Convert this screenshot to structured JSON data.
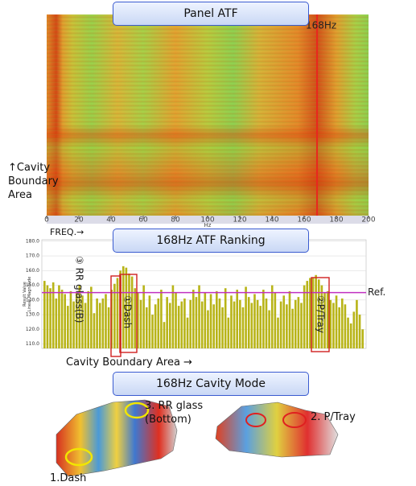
{
  "charts": [
    {
      "type": "heatmap",
      "title": "Panel  ATF",
      "xlabel": "FREQ.→",
      "ylabel": [
        "↑Cavity",
        "Boundary",
        "Area"
      ],
      "xunit": "Hz",
      "xlim": [
        0,
        200
      ],
      "xticks": [
        0,
        20,
        40,
        60,
        80,
        100,
        120,
        140,
        160,
        180,
        200
      ],
      "marker": {
        "value": 168,
        "label": "168Hz",
        "color": "#e8281e"
      }
    },
    {
      "type": "bar",
      "title": "168Hz  ATF Ranking",
      "xlabel": "Cavity Boundary Area →",
      "ylabel": [
        "Result Value",
        "Linear Magnitude"
      ],
      "color": "#b8b418",
      "ylim": [
        107,
        181
      ],
      "yticks": [
        {
          "value": 110,
          "label": "110.0"
        },
        {
          "value": 120,
          "label": "120.0"
        },
        {
          "value": 130,
          "label": "130.0"
        },
        {
          "value": 140,
          "label": "140.0"
        },
        {
          "value": 150,
          "label": "150.0"
        },
        {
          "value": 160,
          "label": "160.0"
        },
        {
          "value": 170,
          "label": "170.0"
        },
        {
          "value": 180,
          "label": "180.0"
        }
      ],
      "grid": true,
      "ref_line": {
        "value": 145,
        "label": "Ref.",
        "color": "#c030c0"
      },
      "highlights": [
        "③ RR glass(B)",
        "①Dash",
        "②P/Tray"
      ],
      "values": [
        153,
        150,
        148,
        152,
        141,
        150,
        147,
        144,
        136,
        146,
        139,
        145,
        150,
        143,
        138,
        146,
        149,
        131,
        141,
        138,
        141,
        144,
        135,
        147,
        151,
        155,
        160,
        163,
        162,
        158,
        156,
        148,
        145,
        140,
        150,
        135,
        143,
        130,
        137,
        141,
        147,
        125,
        142,
        138,
        150,
        145,
        136,
        139,
        141,
        128,
        140,
        147,
        142,
        150,
        139,
        145,
        133,
        144,
        137,
        146,
        141,
        135,
        148,
        128,
        143,
        139,
        147,
        140,
        135,
        149,
        142,
        138,
        144,
        140,
        136,
        147,
        141,
        133,
        150,
        145,
        128,
        139,
        143,
        137,
        146,
        134,
        140,
        142,
        138,
        150,
        153,
        155,
        155,
        157,
        154,
        150,
        145,
        146,
        140,
        138,
        143,
        135,
        141,
        137,
        128,
        124,
        132,
        140,
        130,
        120
      ]
    }
  ],
  "mode_panel": {
    "title": "168Hz Cavity Mode",
    "labels": [
      [
        "3. RR glass",
        "(Bottom)"
      ],
      "2. P/Tray",
      "1.Dash"
    ]
  }
}
